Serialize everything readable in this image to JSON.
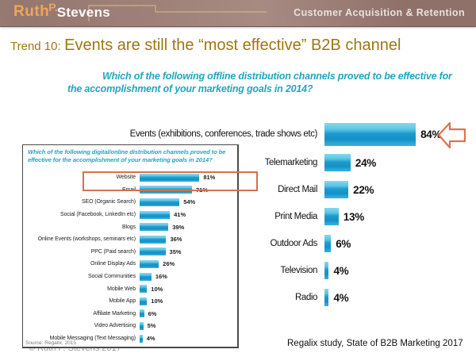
{
  "header": {
    "brand_ruth": "Ruth",
    "brand_p": "P.",
    "brand_stevens": "Stevens",
    "tagline": "Customer Acquisition & Retention"
  },
  "title": {
    "prefix": "Trend 10:",
    "main": "Events are still the “most effective” B2B channel"
  },
  "palette": {
    "header_bg": "#9b7d75",
    "brand_gold": "#eca75b",
    "title_gold": "#9d7712",
    "question_teal": "#23a5bf",
    "bar_blue_light": "#86d8f0",
    "bar_blue_dark": "#1391c6",
    "highlight_orange": "#d4714e",
    "arrow_orange": "#e0714d"
  },
  "chart_data": [
    {
      "type": "bar",
      "orientation": "horizontal",
      "title_line1": "Which of the following offline distribution channels proved to be effective for",
      "title_line2": "the accomplishment of your marketing goals in 2014?",
      "categories": [
        "Events (exhibitions, conferences, trade shows etc)",
        "Telemarketing",
        "Direct Mail",
        "Print Media",
        "Outdoor Ads",
        "Television",
        "Radio"
      ],
      "values": [
        84,
        24,
        22,
        13,
        6,
        4,
        4
      ],
      "value_suffix": "%",
      "xlim": [
        0,
        100
      ],
      "grid": false,
      "legend": "none",
      "annotation": "orange left-arrow pointing at Events 84% bar"
    },
    {
      "type": "bar",
      "orientation": "horizontal",
      "title_line1": "Which of the following digital/online distribution channels proved to be",
      "title_line2": "effective for the accomplishment of your marketing goals in 2014?",
      "categories": [
        "Website",
        "Email",
        "SEO (Organic Search)",
        "Social (Facebook, LinkedIn etc)",
        "Blogs",
        "Online Events (workshops, seminars etc)",
        "PPC (Paid search)",
        "Online Display Ads",
        "Social Communities",
        "Mobile Web",
        "Mobile App",
        "Affiliate Marketing",
        "Video Advertising",
        "Mobile Messaging (Text Messaging)"
      ],
      "values": [
        81,
        71,
        54,
        41,
        39,
        36,
        35,
        26,
        16,
        10,
        10,
        6,
        5,
        4
      ],
      "value_suffix": "%",
      "xlim": [
        0,
        100
      ],
      "grid": false,
      "legend": "none",
      "source": "Source: Regalix, 2015",
      "highlight": "Website row outlined in orange"
    }
  ],
  "footer": {
    "copyright": "© Ruth P. Stevens 2017",
    "attribution": "Regalix study, State of B2B Marketing 2017"
  }
}
